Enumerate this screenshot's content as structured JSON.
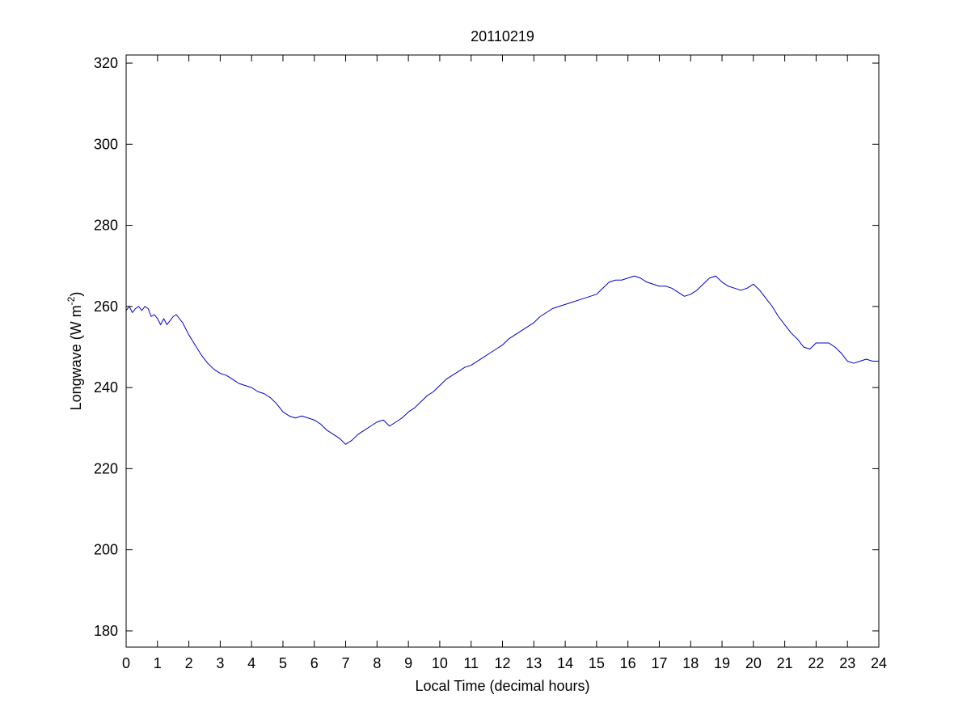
{
  "chart_data": {
    "type": "line",
    "title": "20110219",
    "xlabel": "Local Time (decimal hours)",
    "ylabel": {
      "main": "Longwave (W m",
      "sup": "-2",
      "close": ")"
    },
    "xlim": [
      0,
      24
    ],
    "ylim": [
      176,
      322
    ],
    "xticks": [
      0,
      1,
      2,
      3,
      4,
      5,
      6,
      7,
      8,
      9,
      10,
      11,
      12,
      13,
      14,
      15,
      16,
      17,
      18,
      19,
      20,
      21,
      22,
      23,
      24
    ],
    "xtick_labels": [
      "0",
      "1",
      "2",
      "3",
      "4",
      "5",
      "6",
      "7",
      "8",
      "9",
      "10",
      "11",
      "12",
      "13",
      "14",
      "15",
      "16",
      "17",
      "18",
      "19",
      "20",
      "21",
      "22",
      "23",
      "24"
    ],
    "yticks": [
      180,
      200,
      220,
      240,
      260,
      280,
      300,
      320
    ],
    "ytick_labels": [
      "180",
      "200",
      "220",
      "240",
      "260",
      "280",
      "300",
      "320"
    ],
    "grid": false,
    "line_color": "#0000cc",
    "series": [
      {
        "x": [
          0,
          0.1,
          0.2,
          0.3,
          0.4,
          0.5,
          0.6,
          0.7,
          0.8,
          0.9,
          1.0,
          1.1,
          1.2,
          1.3,
          1.4,
          1.5,
          1.6,
          1.8,
          2.0,
          2.2,
          2.4,
          2.6,
          2.8,
          3.0,
          3.2,
          3.4,
          3.6,
          3.8,
          4.0,
          4.2,
          4.4,
          4.6,
          4.8,
          5.0,
          5.2,
          5.4,
          5.6,
          5.8,
          6.0,
          6.2,
          6.4,
          6.6,
          6.8,
          7.0,
          7.2,
          7.4,
          7.6,
          7.8,
          8.0,
          8.2,
          8.4,
          8.6,
          8.8,
          9.0,
          9.2,
          9.4,
          9.6,
          9.8,
          10.0,
          10.2,
          10.4,
          10.6,
          10.8,
          11.0,
          11.2,
          11.4,
          11.6,
          11.8,
          12.0,
          12.2,
          12.4,
          12.6,
          12.8,
          13.0,
          13.2,
          13.4,
          13.6,
          13.8,
          14.0,
          14.2,
          14.4,
          14.6,
          14.8,
          15.0,
          15.2,
          15.4,
          15.6,
          15.8,
          16.0,
          16.2,
          16.4,
          16.6,
          16.8,
          17.0,
          17.2,
          17.4,
          17.6,
          17.8,
          18.0,
          18.2,
          18.4,
          18.6,
          18.8,
          19.0,
          19.2,
          19.4,
          19.6,
          19.8,
          20.0,
          20.2,
          20.4,
          20.6,
          20.8,
          21.0,
          21.2,
          21.4,
          21.6,
          21.8,
          22.0,
          22.2,
          22.4,
          22.6,
          22.8,
          23.0,
          23.2,
          23.4,
          23.6,
          23.8,
          24.0
        ],
        "y": [
          259,
          260,
          258.5,
          259.5,
          260,
          259,
          260,
          259.5,
          257.5,
          258,
          257,
          255.5,
          257,
          255.5,
          256.5,
          257.5,
          258,
          256,
          253,
          250.5,
          248,
          246,
          244.5,
          243.5,
          243,
          242,
          241,
          240.5,
          240,
          239,
          238.5,
          237.5,
          236,
          234,
          233,
          232.5,
          233,
          232.5,
          232,
          231,
          229.5,
          228.5,
          227.5,
          226,
          227,
          228.5,
          229.5,
          230.5,
          231.5,
          232,
          230.5,
          231.5,
          232.5,
          234,
          235,
          236.5,
          238,
          239,
          240.5,
          242,
          243,
          244,
          245,
          245.5,
          246.5,
          247.5,
          248.5,
          249.5,
          250.5,
          252,
          253,
          254,
          255,
          256,
          257.5,
          258.5,
          259.5,
          260,
          260.5,
          261,
          261.5,
          262,
          262.5,
          263,
          264.5,
          266,
          266.5,
          266.5,
          267,
          267.5,
          267,
          266,
          265.5,
          265,
          265,
          264.5,
          263.5,
          262.5,
          263,
          264,
          265.5,
          267,
          267.5,
          266,
          265,
          264.5,
          264,
          264.5,
          265.5,
          264,
          262,
          260,
          257.5,
          255.5,
          253.5,
          252,
          250,
          249.5,
          251,
          251,
          251,
          250,
          248.5,
          246.5,
          246,
          246.5,
          247,
          246.5,
          246.5
        ]
      }
    ]
  }
}
